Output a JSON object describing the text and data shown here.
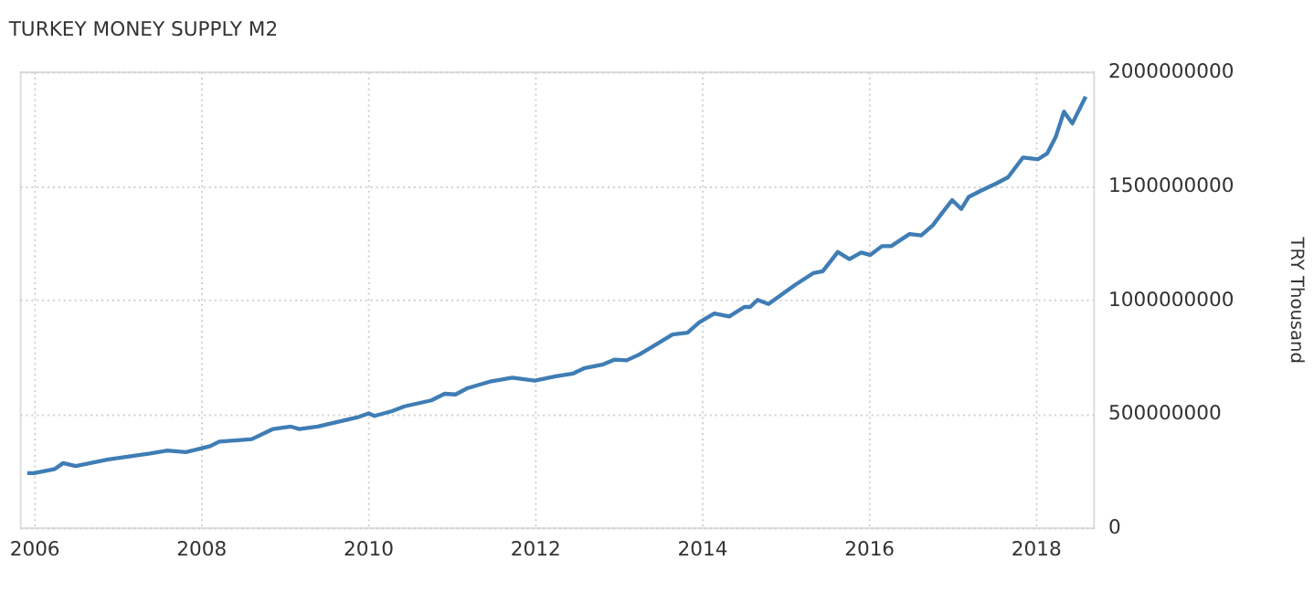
{
  "chart_data": {
    "type": "line",
    "title": "TURKEY MONEY SUPPLY M2",
    "ylabel": "TRY Thousand",
    "x": [
      2005.92,
      2006.0,
      2006.25,
      2006.35,
      2006.5,
      2006.89,
      2007.39,
      2007.6,
      2007.82,
      2008.11,
      2008.22,
      2008.61,
      2008.86,
      2009.08,
      2009.18,
      2009.4,
      2009.87,
      2010.01,
      2010.08,
      2010.29,
      2010.44,
      2010.76,
      2010.92,
      2011.05,
      2011.19,
      2011.48,
      2011.73,
      2012.0,
      2012.25,
      2012.46,
      2012.6,
      2012.82,
      2012.96,
      2013.1,
      2013.25,
      2013.42,
      2013.65,
      2013.83,
      2013.97,
      2014.15,
      2014.33,
      2014.51,
      2014.58,
      2014.67,
      2014.8,
      2015.12,
      2015.34,
      2015.45,
      2015.63,
      2015.77,
      2015.91,
      2016.02,
      2016.16,
      2016.27,
      2016.49,
      2016.63,
      2016.77,
      2016.88,
      2017.0,
      2017.11,
      2017.2,
      2017.35,
      2017.53,
      2017.67,
      2017.85,
      2018.03,
      2018.14,
      2018.24,
      2018.34,
      2018.44,
      2018.6
    ],
    "series": [
      {
        "color": "#3f7db5",
        "values": [
          238000000,
          238000000,
          256000000,
          282000000,
          269000000,
          298000000,
          324000000,
          337000000,
          330000000,
          356000000,
          376000000,
          387000000,
          431000000,
          442000000,
          431000000,
          442000000,
          482000000,
          500000000,
          489000000,
          510000000,
          531000000,
          557000000,
          586000000,
          583000000,
          610000000,
          641000000,
          657000000,
          644000000,
          663000000,
          675000000,
          699000000,
          715000000,
          736000000,
          733000000,
          758000000,
          795000000,
          846000000,
          854000000,
          899000000,
          938000000,
          925000000,
          967000000,
          967000000,
          998000000,
          980000000,
          1064000000,
          1116000000,
          1124000000,
          1208000000,
          1177000000,
          1206000000,
          1195000000,
          1234000000,
          1234000000,
          1287000000,
          1281000000,
          1326000000,
          1379000000,
          1436000000,
          1397000000,
          1450000000,
          1478000000,
          1509000000,
          1536000000,
          1623000000,
          1615000000,
          1641000000,
          1712000000,
          1824000000,
          1772000000,
          1890000000
        ]
      }
    ],
    "xlim": [
      2005.83,
      2018.69
    ],
    "xticks": [
      2006,
      2008,
      2010,
      2012,
      2014,
      2016,
      2018
    ],
    "ylim": [
      0,
      2000000000
    ],
    "yticks": [
      0,
      500000000,
      1000000000,
      1500000000,
      2000000000
    ],
    "grid": true,
    "marker": "none",
    "line_style": "solid"
  }
}
